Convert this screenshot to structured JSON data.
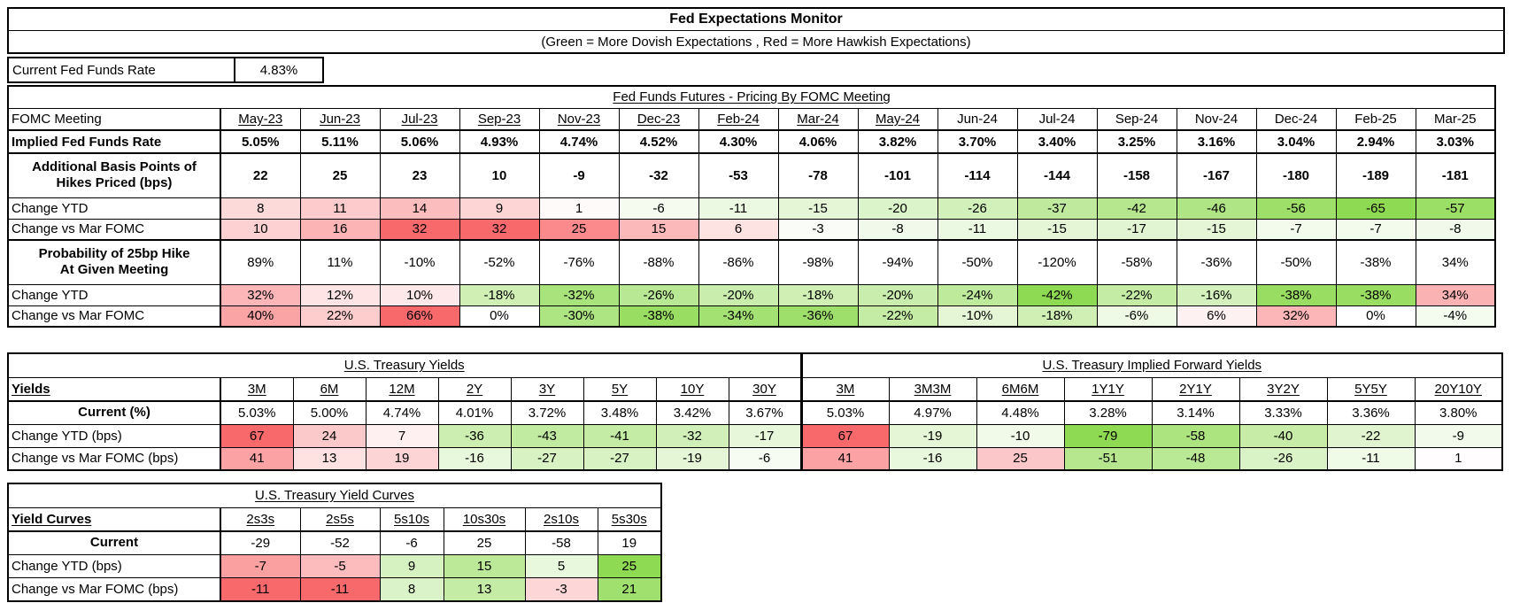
{
  "title": "Fed Expectations Monitor",
  "subtitle": "(Green = More Dovish Expectations , Red = More Hawkish Expectations)",
  "current_rate": {
    "label": "Current Fed Funds Rate",
    "value": "4.83%"
  },
  "colors": {
    "red": "#F8696B",
    "green": "#8EDA52",
    "border": "#000000"
  },
  "scales": {
    "hikes": {
      "red_span": 32,
      "green_span": 65,
      "invert": false
    },
    "prob": {
      "red_span": 66,
      "green_span": 42,
      "invert": false
    },
    "yields": {
      "red_span": 67,
      "green_span": 79,
      "invert": false
    },
    "curves": {
      "red_span": 11,
      "green_span": 25,
      "invert": true
    }
  },
  "tables": {
    "fomc": {
      "group_headers": [
        {
          "text": "Fed Funds Futures - Pricing By FOMC Meeting",
          "colspan": 17
        }
      ],
      "corner_label": "FOMC Meeting",
      "corner_bold": false,
      "corner_underline": false,
      "columns": [
        {
          "text": "May-23",
          "u": true
        },
        {
          "text": "Jun-23",
          "u": true
        },
        {
          "text": "Jul-23",
          "u": true
        },
        {
          "text": "Sep-23",
          "u": true
        },
        {
          "text": "Nov-23",
          "u": true
        },
        {
          "text": "Dec-23",
          "u": true
        },
        {
          "text": "Feb-24",
          "u": true
        },
        {
          "text": "Mar-24",
          "u": true
        },
        {
          "text": "May-24",
          "u": true
        },
        {
          "text": "Jun-24",
          "u": false
        },
        {
          "text": "Jul-24",
          "u": false
        },
        {
          "text": "Sep-24",
          "u": false
        },
        {
          "text": "Nov-24",
          "u": false
        },
        {
          "text": "Dec-24",
          "u": false
        },
        {
          "text": "Feb-25",
          "u": false
        },
        {
          "text": "Mar-25",
          "u": false
        }
      ],
      "rows": [
        {
          "label": "Implied Fed Funds Rate",
          "label_bold": true,
          "values_bold": true,
          "thick_bottom": true,
          "scale": null,
          "values": [
            "5.05%",
            "5.11%",
            "5.06%",
            "4.93%",
            "4.74%",
            "4.52%",
            "4.30%",
            "4.06%",
            "3.82%",
            "3.70%",
            "3.40%",
            "3.25%",
            "3.16%",
            "3.04%",
            "2.94%",
            "3.03%"
          ]
        },
        {
          "label": "Additional Basis Points of\nHikes Priced (bps)",
          "label_bold": true,
          "label_center": true,
          "values_bold": true,
          "scale": null,
          "values": [
            "22",
            "25",
            "23",
            "10",
            "-9",
            "-32",
            "-53",
            "-78",
            "-101",
            "-114",
            "-144",
            "-158",
            "-167",
            "-180",
            "-189",
            "-181"
          ]
        },
        {
          "label": "Change YTD",
          "scale": "hikes",
          "values": [
            "8",
            "11",
            "14",
            "9",
            "1",
            "-6",
            "-11",
            "-15",
            "-20",
            "-26",
            "-37",
            "-42",
            "-46",
            "-56",
            "-65",
            "-57"
          ]
        },
        {
          "label": "Change vs Mar FOMC",
          "scale": "hikes",
          "thick_bottom": true,
          "values": [
            "10",
            "16",
            "32",
            "32",
            "25",
            "15",
            "6",
            "-3",
            "-8",
            "-11",
            "-15",
            "-17",
            "-15",
            "-7",
            "-7",
            "-8"
          ]
        },
        {
          "label": "Probability of 25bp Hike\nAt Given Meeting",
          "label_bold": true,
          "label_center": true,
          "scale": null,
          "values": [
            "89%",
            "11%",
            "-10%",
            "-52%",
            "-76%",
            "-88%",
            "-86%",
            "-98%",
            "-94%",
            "-50%",
            "-120%",
            "-58%",
            "-36%",
            "-50%",
            "-38%",
            "34%"
          ]
        },
        {
          "label": "Change YTD",
          "scale": "prob",
          "values": [
            "32%",
            "12%",
            "10%",
            "-18%",
            "-32%",
            "-26%",
            "-20%",
            "-18%",
            "-20%",
            "-24%",
            "-42%",
            "-22%",
            "-16%",
            "-38%",
            "-38%",
            "34%"
          ]
        },
        {
          "label": "Change vs Mar FOMC",
          "scale": "prob",
          "values": [
            "40%",
            "22%",
            "66%",
            "0%",
            "-30%",
            "-38%",
            "-34%",
            "-36%",
            "-22%",
            "-10%",
            "-18%",
            "-6%",
            "6%",
            "32%",
            "0%",
            "-4%"
          ]
        }
      ]
    },
    "yields": {
      "group_headers": [
        {
          "text": "U.S. Treasury Yields",
          "colspan": 9,
          "divider": true
        },
        {
          "text": "U.S. Treasury Implied Forward Yields",
          "colspan": 8
        }
      ],
      "corner_label": "Yields",
      "corner_bold": true,
      "corner_underline": true,
      "divider_after": 8,
      "columns": [
        {
          "text": "3M",
          "u": true
        },
        {
          "text": "6M",
          "u": true
        },
        {
          "text": "12M",
          "u": true
        },
        {
          "text": "2Y",
          "u": true
        },
        {
          "text": "3Y",
          "u": true
        },
        {
          "text": "5Y",
          "u": true
        },
        {
          "text": "10Y",
          "u": true
        },
        {
          "text": "30Y",
          "u": true
        },
        {
          "text": "3M",
          "u": true
        },
        {
          "text": "3M3M",
          "u": true
        },
        {
          "text": "6M6M",
          "u": true
        },
        {
          "text": "1Y1Y",
          "u": true
        },
        {
          "text": "2Y1Y",
          "u": true
        },
        {
          "text": "3Y2Y",
          "u": true
        },
        {
          "text": "5Y5Y",
          "u": true
        },
        {
          "text": "20Y10Y",
          "u": true
        }
      ],
      "rows": [
        {
          "label": "Current (%)",
          "label_bold": true,
          "label_center": true,
          "scale": null,
          "values": [
            "5.03%",
            "5.00%",
            "4.74%",
            "4.01%",
            "3.72%",
            "3.48%",
            "3.42%",
            "3.67%",
            "5.03%",
            "4.97%",
            "4.48%",
            "3.28%",
            "3.14%",
            "3.33%",
            "3.36%",
            "3.80%"
          ]
        },
        {
          "label": "Change YTD (bps)",
          "scale": "yields",
          "values": [
            "67",
            "24",
            "7",
            "-36",
            "-43",
            "-41",
            "-32",
            "-17",
            "67",
            "-19",
            "-10",
            "-79",
            "-58",
            "-40",
            "-22",
            "-9"
          ]
        },
        {
          "label": "Change vs Mar FOMC (bps)",
          "scale": "yields",
          "values": [
            "41",
            "13",
            "19",
            "-16",
            "-27",
            "-27",
            "-19",
            "-6",
            "41",
            "-16",
            "25",
            "-51",
            "-48",
            "-26",
            "-11",
            "1"
          ]
        }
      ]
    },
    "curves": {
      "group_headers": [
        {
          "text": "U.S. Treasury Yield Curves",
          "colspan": 7
        }
      ],
      "corner_label": "Yield Curves",
      "corner_bold": true,
      "corner_underline": true,
      "columns": [
        {
          "text": "2s3s",
          "u": true
        },
        {
          "text": "2s5s",
          "u": true
        },
        {
          "text": "5s10s",
          "u": true
        },
        {
          "text": "10s30s",
          "u": true
        },
        {
          "text": "2s10s",
          "u": true
        },
        {
          "text": "5s30s",
          "u": true
        }
      ],
      "rows": [
        {
          "label": "Current",
          "label_bold": true,
          "label_center": true,
          "scale": null,
          "values": [
            "-29",
            "-52",
            "-6",
            "25",
            "-58",
            "19"
          ]
        },
        {
          "label": "Change YTD (bps)",
          "scale": "curves",
          "values": [
            "-7",
            "-5",
            "9",
            "15",
            "5",
            "25"
          ]
        },
        {
          "label": "Change vs Mar FOMC (bps)",
          "scale": "curves",
          "values": [
            "-11",
            "-11",
            "8",
            "13",
            "-3",
            "21"
          ]
        }
      ]
    }
  }
}
